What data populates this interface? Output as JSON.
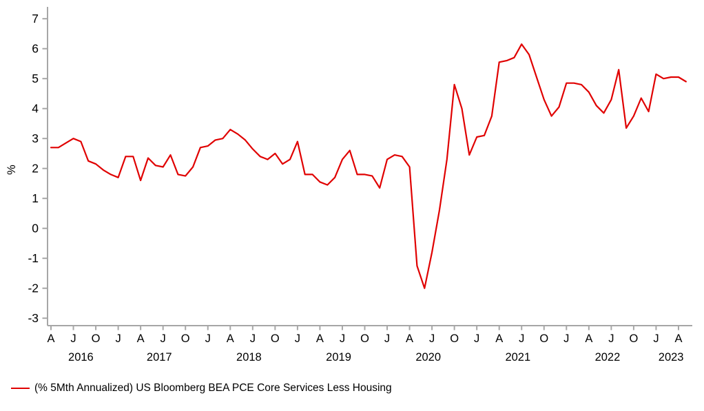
{
  "chart_data": {
    "type": "line",
    "title": "",
    "ylabel": "%",
    "ylim": [
      -3,
      7
    ],
    "y_ticks": [
      7,
      6,
      5,
      4,
      3,
      2,
      1,
      0,
      -1,
      -2,
      -3
    ],
    "grid": false,
    "legend_position": "bottom-left",
    "x_tick_letters": [
      "A",
      "J",
      "O",
      "J",
      "A",
      "J",
      "O",
      "J",
      "A",
      "J",
      "O",
      "J",
      "A",
      "J",
      "O",
      "J",
      "A",
      "J",
      "O",
      "J",
      "A",
      "J",
      "O",
      "J",
      "A",
      "J",
      "O",
      "J",
      "A"
    ],
    "x_tick_years": [
      "2016",
      "2017",
      "2018",
      "2019",
      "2020",
      "2021",
      "2022",
      "2023"
    ],
    "x": [
      "2016-04",
      "2016-05",
      "2016-06",
      "2016-07",
      "2016-08",
      "2016-09",
      "2016-10",
      "2016-11",
      "2016-12",
      "2017-01",
      "2017-02",
      "2017-03",
      "2017-04",
      "2017-05",
      "2017-06",
      "2017-07",
      "2017-08",
      "2017-09",
      "2017-10",
      "2017-11",
      "2017-12",
      "2018-01",
      "2018-02",
      "2018-03",
      "2018-04",
      "2018-05",
      "2018-06",
      "2018-07",
      "2018-08",
      "2018-09",
      "2018-10",
      "2018-11",
      "2018-12",
      "2019-01",
      "2019-02",
      "2019-03",
      "2019-04",
      "2019-05",
      "2019-06",
      "2019-07",
      "2019-08",
      "2019-09",
      "2019-10",
      "2019-11",
      "2019-12",
      "2020-01",
      "2020-02",
      "2020-03",
      "2020-04",
      "2020-05",
      "2020-06",
      "2020-07",
      "2020-08",
      "2020-09",
      "2020-10",
      "2020-11",
      "2020-12",
      "2021-01",
      "2021-02",
      "2021-03",
      "2021-04",
      "2021-05",
      "2021-06",
      "2021-07",
      "2021-08",
      "2021-09",
      "2021-10",
      "2021-11",
      "2021-12",
      "2022-01",
      "2022-02",
      "2022-03",
      "2022-04",
      "2022-05",
      "2022-06",
      "2022-07",
      "2022-08",
      "2022-09",
      "2022-10",
      "2022-11",
      "2022-12",
      "2023-01",
      "2023-02",
      "2023-03",
      "2023-04",
      "2023-05"
    ],
    "series": [
      {
        "name": "(% 5Mth Annualized) US Bloomberg BEA PCE Core Services Less Housing",
        "color": "#e00000",
        "values": [
          2.7,
          2.7,
          2.85,
          3.0,
          2.9,
          2.25,
          2.15,
          1.95,
          1.8,
          1.7,
          2.4,
          2.4,
          1.6,
          2.35,
          2.1,
          2.05,
          2.45,
          1.8,
          1.75,
          2.05,
          2.7,
          2.75,
          2.95,
          3.0,
          3.3,
          3.15,
          2.95,
          2.65,
          2.4,
          2.3,
          2.5,
          2.15,
          2.3,
          2.9,
          1.8,
          1.8,
          1.55,
          1.45,
          1.7,
          2.3,
          2.6,
          1.8,
          1.8,
          1.75,
          1.35,
          2.3,
          2.45,
          2.4,
          2.05,
          -1.25,
          -2.0,
          -0.8,
          0.6,
          2.3,
          4.8,
          4.0,
          2.45,
          3.05,
          3.1,
          3.75,
          5.55,
          5.6,
          5.7,
          6.15,
          5.8,
          5.05,
          4.3,
          3.75,
          4.05,
          4.85,
          4.85,
          4.8,
          4.55,
          4.1,
          3.85,
          4.3,
          5.3,
          3.35,
          3.75,
          4.35,
          3.9,
          5.15,
          5.0,
          5.05,
          5.05,
          4.9
        ]
      }
    ]
  },
  "y_axis": {
    "label": "%"
  },
  "legend": {
    "label": "(% 5Mth Annualized) US Bloomberg BEA PCE Core Services Less Housing",
    "color": "#e00000"
  },
  "colors": {
    "line": "#e00000",
    "axis": "#a6a6a6",
    "text": "#000000",
    "background": "#ffffff"
  }
}
